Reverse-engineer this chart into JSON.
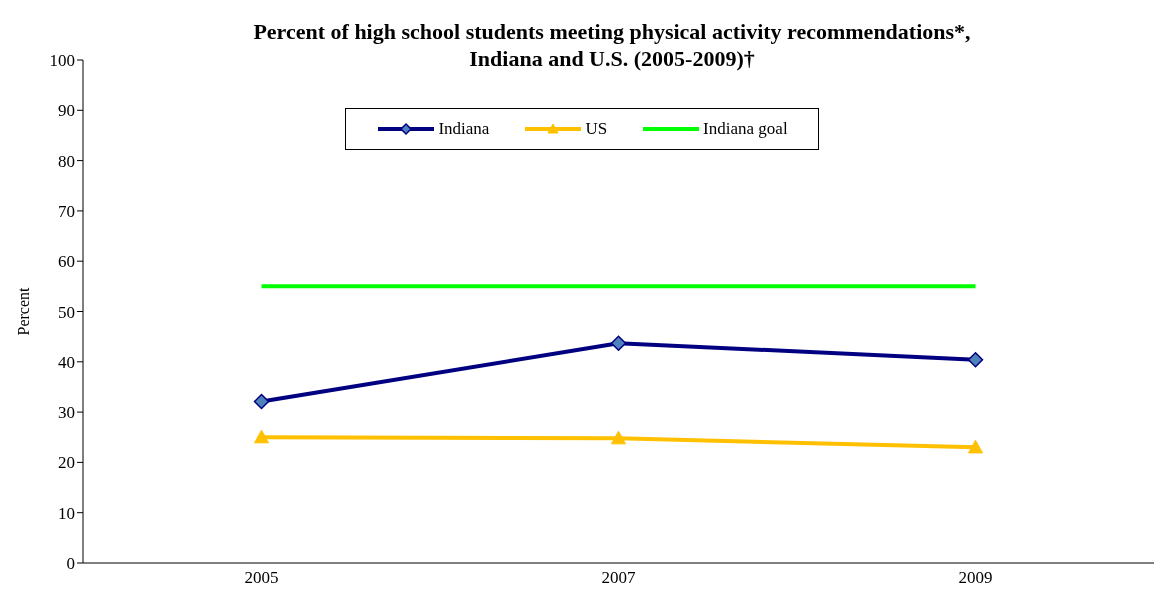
{
  "chart_data": {
    "type": "line",
    "title": "Percent of high school students meeting physical activity recommendations*,\nIndiana and U.S. (2005-2009)†",
    "ylabel": "Percent",
    "categories": [
      "2005",
      "2007",
      "2009"
    ],
    "series": [
      {
        "name": "Indiana",
        "color": "#000080",
        "values": [
          32.1,
          43.7,
          40.4
        ],
        "marker": "diamond"
      },
      {
        "name": "US",
        "color": "#ffc000",
        "values": [
          25.0,
          24.8,
          23.0
        ],
        "marker": "triangle"
      },
      {
        "name": "Indiana goal",
        "color": "#00ff00",
        "values": [
          55,
          55,
          55
        ],
        "marker": "none"
      }
    ],
    "ylim": [
      0,
      100
    ],
    "yticks": [
      0,
      10,
      20,
      30,
      40,
      50,
      60,
      70,
      80,
      90,
      100
    ],
    "grid": false,
    "legend": "top",
    "line_style": "solid"
  }
}
